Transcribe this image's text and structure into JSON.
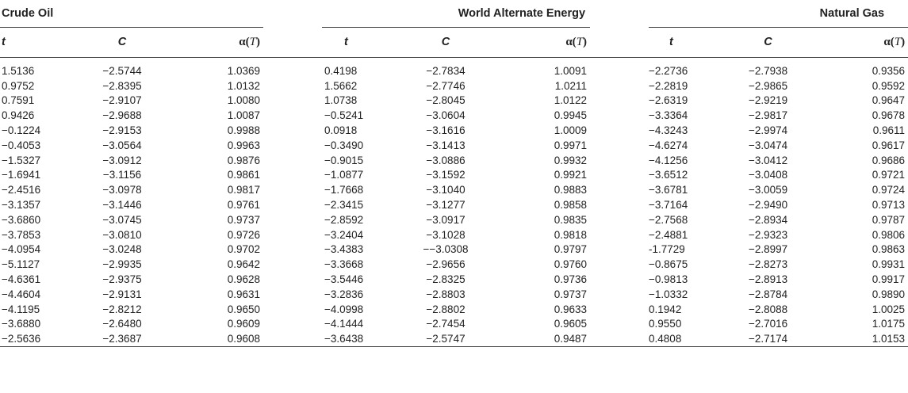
{
  "groups": [
    "Crude Oil",
    "World Alternate Energy",
    "Natural Gas"
  ],
  "columns": {
    "t": "t",
    "c": "C",
    "alpha_prefix": "α(",
    "alpha_var": "T",
    "alpha_suffix": ")"
  },
  "rows": [
    [
      "1.5136",
      "−2.5744",
      "1.0369",
      "0.4198",
      "−2.7834",
      "1.0091",
      "−2.2736",
      "−2.7938",
      "0.9356"
    ],
    [
      "0.9752",
      "−2.8395",
      "1.0132",
      "1.5662",
      "−2.7746",
      "1.0211",
      "−2.2819",
      "−2.9865",
      "0.9592"
    ],
    [
      "0.7591",
      "−2.9107",
      "1.0080",
      "1.0738",
      "−2.8045",
      "1.0122",
      "−2.6319",
      "−2.9219",
      "0.9647"
    ],
    [
      "0.9426",
      "−2.9688",
      "1.0087",
      "−0.5241",
      "−3.0604",
      "0.9945",
      "−3.3364",
      "−2.9817",
      "0.9678"
    ],
    [
      "−0.1224",
      "−2.9153",
      "0.9988",
      "0.0918",
      "−3.1616",
      "1.0009",
      "−4.3243",
      "−2.9974",
      "0.9611"
    ],
    [
      "−0.4053",
      "−3.0564",
      "0.9963",
      "−0.3490",
      "−3.1413",
      "0.9971",
      "−4.6274",
      "−3.0474",
      "0.9617"
    ],
    [
      "−1.5327",
      "−3.0912",
      "0.9876",
      "−0.9015",
      "−3.0886",
      "0.9932",
      "−4.1256",
      "−3.0412",
      "0.9686"
    ],
    [
      "−1.6941",
      "−3.1156",
      "0.9861",
      "−1.0877",
      "−3.1592",
      "0.9921",
      "−3.6512",
      "−3.0408",
      "0.9721"
    ],
    [
      "−2.4516",
      "−3.0978",
      "0.9817",
      "−1.7668",
      "−3.1040",
      "0.9883",
      "−3.6781",
      "−3.0059",
      "0.9724"
    ],
    [
      "−3.1357",
      "−3.1446",
      "0.9761",
      "−2.3415",
      "−3.1277",
      "0.9858",
      "−3.7164",
      "−2.9490",
      "0.9713"
    ],
    [
      "−3.6860",
      "−3.0745",
      "0.9737",
      "−2.8592",
      "−3.0917",
      "0.9835",
      "−2.7568",
      "−2.8934",
      "0.9787"
    ],
    [
      "−3.7853",
      "−3.0810",
      "0.9726",
      "−3.2404",
      "−3.1028",
      "0.9818",
      "−2.4881",
      "−2.9323",
      "0.9806"
    ],
    [
      "−4.0954",
      "−3.0248",
      "0.9702",
      "−3.4383",
      "−−3.0308",
      "0.9797",
      "-1.7729",
      "−2.8997",
      "0.9863"
    ],
    [
      "−5.1127",
      "−2.9935",
      "0.9642",
      "−3.3668",
      "−2.9656",
      "0.9760",
      "−0.8675",
      "−2.8273",
      "0.9931"
    ],
    [
      "−4.6361",
      "−2.9375",
      "0.9628",
      "−3.5446",
      "−2.8325",
      "0.9736",
      "−0.9813",
      "−2.8913",
      "0.9917"
    ],
    [
      "−4.4604",
      "−2.9131",
      "0.9631",
      "−3.2836",
      "−2.8803",
      "0.9737",
      "−1.0332",
      "−2.8784",
      "0.9890"
    ],
    [
      "−4.1195",
      "−2.8212",
      "0.9650",
      "−4.0998",
      "−2.8802",
      "0.9633",
      "0.1942",
      "−2.8088",
      "1.0025"
    ],
    [
      "−3.6880",
      "−2.6480",
      "0.9609",
      "−4.1444",
      "−2.7454",
      "0.9605",
      "0.9550",
      "−2.7016",
      "1.0175"
    ],
    [
      "−2.5636",
      "−2.3687",
      "0.9608",
      "−3.6438",
      "−2.5747",
      "0.9487",
      "0.4808",
      "−2.7174",
      "1.0153"
    ]
  ]
}
